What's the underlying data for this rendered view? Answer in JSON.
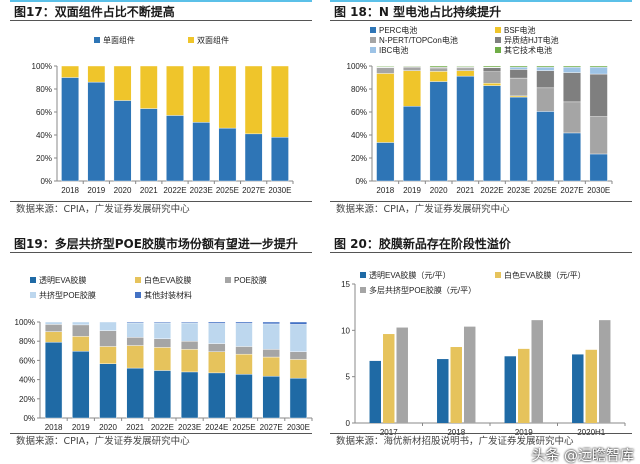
{
  "chart_data": [
    {
      "type": "bar",
      "stacked": true,
      "title": "图17：双面组件占比不断提高",
      "source": "数据来源：CPIA，广发证券发展研究中心",
      "categories": [
        "2018",
        "2019",
        "2020",
        "2021",
        "2022E",
        "2023E",
        "2025E",
        "2027E",
        "2030E"
      ],
      "ylim": [
        0,
        100
      ],
      "yticks": [
        "0%",
        "20%",
        "40%",
        "60%",
        "80%",
        "100%"
      ],
      "legend": "top",
      "series": [
        {
          "name": "单面组件",
          "color": "#2e75b6",
          "values": [
            90,
            86,
            70,
            63,
            57,
            51,
            46,
            41,
            38
          ]
        },
        {
          "name": "双面组件",
          "color": "#efc52b",
          "values": [
            10,
            14,
            30,
            37,
            43,
            49,
            54,
            59,
            62
          ]
        }
      ]
    },
    {
      "type": "bar",
      "stacked": true,
      "title": "图 18：N 型电池占比持续提升",
      "source": "数据来源：CPIA，广发证券发展研究中心",
      "categories": [
        "2018",
        "2019",
        "2020",
        "2021",
        "2022E",
        "2023E",
        "2025E",
        "2027E",
        "2030E"
      ],
      "ylim": [
        0,
        100
      ],
      "yticks": [
        "0%",
        "20%",
        "40%",
        "60%",
        "80%",
        "100%"
      ],
      "legend": "top",
      "series": [
        {
          "name": "PERC电池",
          "color": "#2e75b6",
          "values": [
            33.5,
            65,
            86.5,
            91.2,
            83,
            73,
            60.5,
            41.8,
            23.5
          ]
        },
        {
          "name": "BSF电池",
          "color": "#efc52b",
          "values": [
            60,
            31,
            8.8,
            4.8,
            2,
            1,
            0,
            0,
            0
          ]
        },
        {
          "name": "N-PERT/TOPCon电池",
          "color": "#a5a5a5",
          "values": [
            5,
            3,
            3,
            2.4,
            10,
            15.5,
            20.5,
            27,
            32.5
          ]
        },
        {
          "name": "异质结HJT电池",
          "color": "#7f7f7f",
          "values": [
            0.5,
            0.5,
            0.7,
            0.7,
            3.5,
            7.5,
            15,
            25.5,
            37
          ]
        },
        {
          "name": "IBC电池",
          "color": "#9dc3e6",
          "values": [
            0.3,
            0,
            0,
            0.2,
            0.5,
            2,
            3,
            4.7,
            6
          ]
        },
        {
          "name": "其它技术电池",
          "color": "#70ad47",
          "values": [
            0.7,
            0.5,
            1,
            0.7,
            1,
            1,
            1,
            1,
            1
          ]
        }
      ]
    },
    {
      "type": "bar",
      "stacked": true,
      "title": "图19：多层共挤型POE胶膜市场份额有望进一步提升",
      "source": "数据来源：CPIA，广发证券发展研究中心",
      "categories": [
        "2018",
        "2019",
        "2020",
        "2021",
        "2022E",
        "2023E",
        "2024E",
        "2025E",
        "2027E",
        "2030E"
      ],
      "ylim": [
        0,
        100
      ],
      "yticks": [
        "0%",
        "20%",
        "40%",
        "60%",
        "80%",
        "100%"
      ],
      "legend": "top",
      "series": [
        {
          "name": "透明EVA胶膜",
          "color": "#1f6aa5",
          "values": [
            79,
            69.5,
            56.5,
            52,
            49.5,
            48,
            47,
            45.5,
            43.5,
            41.5
          ]
        },
        {
          "name": "白色EVA胶膜",
          "color": "#e6c35c",
          "values": [
            11,
            15.5,
            18,
            23.5,
            24,
            23.5,
            22,
            21,
            20,
            19.5
          ]
        },
        {
          "name": "POE胶膜",
          "color": "#a5a5a5",
          "values": [
            7.5,
            12,
            16.5,
            8.5,
            9,
            8.5,
            8.5,
            8,
            8,
            8
          ]
        },
        {
          "name": "共挤型POE胶膜",
          "color": "#bdd7ee",
          "values": [
            2.5,
            3,
            9,
            15,
            16.5,
            19,
            21,
            24,
            26.5,
            28.5
          ]
        },
        {
          "name": "其他封装材料",
          "color": "#4472c4",
          "values": [
            0,
            0,
            0,
            1,
            1,
            1,
            1.5,
            1.5,
            2,
            2.5
          ]
        }
      ]
    },
    {
      "type": "bar",
      "stacked": false,
      "title": "图 20：胶膜新品存在阶段性溢价",
      "source": "数据来源：海优新材招股说明书，广发证券发展研究中心",
      "categories": [
        "2017",
        "2018",
        "2019",
        "2020H1"
      ],
      "ylim": [
        0,
        15
      ],
      "yticks": [
        "0",
        "5",
        "10",
        "15"
      ],
      "legend": "top",
      "series": [
        {
          "name": "透明EVA胶膜（元/平）",
          "color": "#1f6aa5",
          "values": [
            6.7,
            6.9,
            7.2,
            7.4
          ]
        },
        {
          "name": "白色EVA胶膜（元/平）",
          "color": "#e6c35c",
          "values": [
            9.6,
            8.2,
            8.0,
            7.9
          ]
        },
        {
          "name": "多层共挤型POE胶膜（元/平）",
          "color": "#a5a5a5",
          "values": [
            10.3,
            10.4,
            11.1,
            11.1
          ]
        }
      ]
    }
  ],
  "watermark": "头条 @远瞻智库"
}
